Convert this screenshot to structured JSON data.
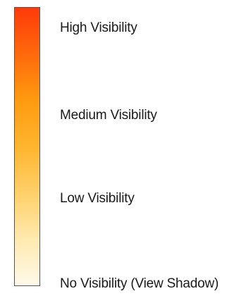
{
  "legend": {
    "gradient_colors": [
      "#ff3a0a",
      "#ff6a0c",
      "#ff9a10",
      "#ffb52e",
      "#ffd06a",
      "#ffe9ad",
      "#fff9ea"
    ],
    "border_color": "#555555",
    "labels": {
      "high": "High Visibility",
      "medium": "Medium Visibility",
      "low": "Low Visibility",
      "none": "No Visibility (View Shadow)"
    }
  }
}
